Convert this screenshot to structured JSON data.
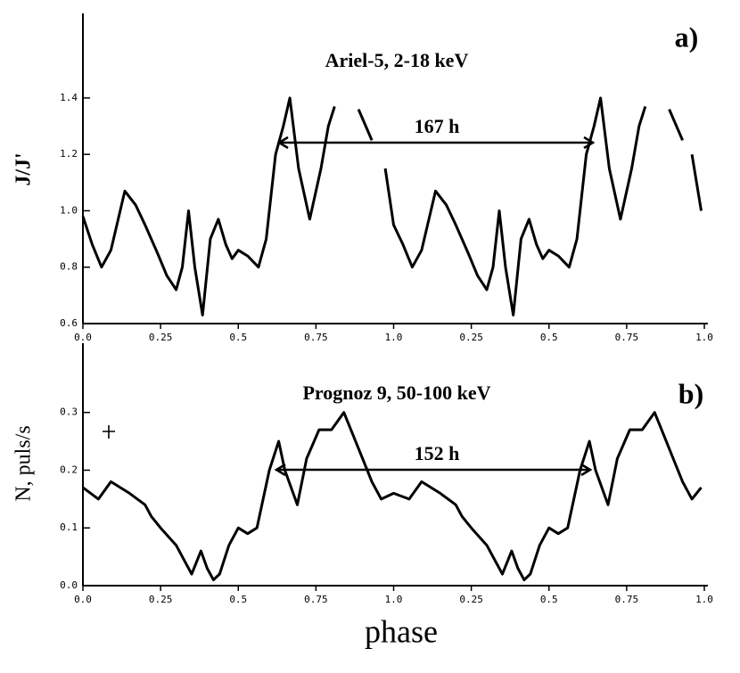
{
  "chart_data": [
    {
      "type": "line",
      "title": "Ariel-5, 2-18 keV",
      "panel_label": "a)",
      "annotation": "167 h",
      "ylabel": "J/J'",
      "x": [
        0,
        0.03,
        0.06,
        0.09,
        0.135,
        0.17,
        0.2,
        0.24,
        0.27,
        0.3,
        0.32,
        0.34,
        0.36,
        0.385,
        0.41,
        0.436,
        0.46,
        0.48,
        0.5,
        0.53,
        0.565,
        0.59,
        0.62,
        0.645,
        0.666,
        0.694,
        0.73,
        0.766,
        0.79,
        0.81,
        0.85,
        0.887,
        0.93,
        0.95,
        0.973,
        1.0,
        1.03,
        1.06,
        1.09,
        1.135,
        1.17,
        1.2,
        1.24,
        1.27,
        1.3,
        1.32,
        1.34,
        1.36,
        1.385,
        1.41,
        1.436,
        1.46,
        1.48,
        1.5,
        1.53,
        1.565,
        1.59,
        1.62,
        1.645,
        1.666,
        1.694,
        1.73,
        1.766,
        1.79,
        1.81,
        1.85,
        1.887,
        1.93,
        1.95,
        1.96,
        1.99
      ],
      "values": [
        0.98,
        0.88,
        0.8,
        0.86,
        1.07,
        1.02,
        0.95,
        0.85,
        0.77,
        0.72,
        0.8,
        1.0,
        0.8,
        0.63,
        0.9,
        0.97,
        0.88,
        0.83,
        0.86,
        0.84,
        0.8,
        0.9,
        1.2,
        1.3,
        1.4,
        1.15,
        0.97,
        1.15,
        1.3,
        1.37,
        null,
        1.36,
        1.25,
        null,
        1.15,
        0.95,
        0.88,
        0.8,
        0.86,
        1.07,
        1.02,
        0.95,
        0.85,
        0.77,
        0.72,
        0.8,
        1.0,
        0.8,
        0.63,
        0.9,
        0.97,
        0.88,
        0.83,
        0.86,
        0.84,
        0.8,
        0.9,
        1.2,
        1.3,
        1.4,
        1.15,
        0.97,
        1.15,
        1.3,
        1.37,
        null,
        1.36,
        1.25,
        null,
        1.2,
        1.0
      ],
      "color": "#000000",
      "xlim": [
        0,
        2
      ],
      "xticks": [
        {
          "value": 0,
          "label": "0.0"
        },
        0.25,
        0.5,
        0.75,
        {
          "value": 1,
          "label": "1.0"
        },
        {
          "value": 1.25,
          "label": "0.25"
        },
        {
          "value": 1.5,
          "label": "0.5"
        },
        {
          "value": 1.75,
          "label": "0.75"
        },
        {
          "value": 2,
          "label": "1.0"
        }
      ],
      "ylim": [
        0.6,
        1.7
      ],
      "yticks": [
        0.6,
        0.8,
        {
          "value": 1.0,
          "label": "1.0"
        },
        1.2,
        1.4
      ]
    },
    {
      "type": "line",
      "title": "Prognoz 9, 50-100 keV",
      "panel_label": "b)",
      "annotation": "152 h",
      "ylabel": "N, puls/s",
      "xlabel": "phase",
      "x": [
        0,
        0.05,
        0.09,
        0.15,
        0.2,
        0.22,
        0.25,
        0.3,
        0.33,
        0.35,
        0.38,
        0.4,
        0.42,
        0.44,
        0.47,
        0.5,
        0.53,
        0.56,
        0.6,
        0.63,
        0.65,
        0.69,
        0.72,
        0.76,
        0.8,
        0.84,
        0.87,
        0.9,
        0.93,
        0.96,
        1.0,
        1.05,
        1.09,
        1.15,
        1.2,
        1.22,
        1.25,
        1.3,
        1.33,
        1.35,
        1.38,
        1.4,
        1.42,
        1.44,
        1.47,
        1.5,
        1.53,
        1.56,
        1.6,
        1.63,
        1.65,
        1.69,
        1.72,
        1.76,
        1.8,
        1.84,
        1.87,
        1.9,
        1.93,
        1.96,
        1.99
      ],
      "values": [
        0.17,
        0.15,
        0.18,
        0.16,
        0.14,
        0.12,
        0.1,
        0.07,
        0.04,
        0.02,
        0.06,
        0.03,
        0.01,
        0.02,
        0.07,
        0.1,
        0.09,
        0.1,
        0.2,
        0.25,
        0.2,
        0.14,
        0.22,
        0.27,
        0.27,
        0.3,
        0.26,
        0.22,
        0.18,
        0.15,
        0.16,
        0.15,
        0.18,
        0.16,
        0.14,
        0.12,
        0.1,
        0.07,
        0.04,
        0.02,
        0.06,
        0.03,
        0.01,
        0.02,
        0.07,
        0.1,
        0.09,
        0.1,
        0.2,
        0.25,
        0.2,
        0.14,
        0.22,
        0.27,
        0.27,
        0.3,
        0.26,
        0.22,
        0.18,
        0.15,
        0.17
      ],
      "color": "#000000",
      "xlim": [
        0,
        2
      ],
      "xticks": [
        {
          "value": 0,
          "label": "0.0"
        },
        0.25,
        0.5,
        0.75,
        {
          "value": 1,
          "label": "1.0"
        },
        {
          "value": 1.25,
          "label": "0.25"
        },
        {
          "value": 1.5,
          "label": "0.5"
        },
        {
          "value": 1.75,
          "label": "0.75"
        },
        {
          "value": 2,
          "label": "1.0"
        }
      ],
      "ylim": [
        0,
        0.42
      ],
      "yticks": [
        {
          "value": 0,
          "label": "0.0"
        },
        0.1,
        0.2,
        0.3
      ]
    }
  ]
}
